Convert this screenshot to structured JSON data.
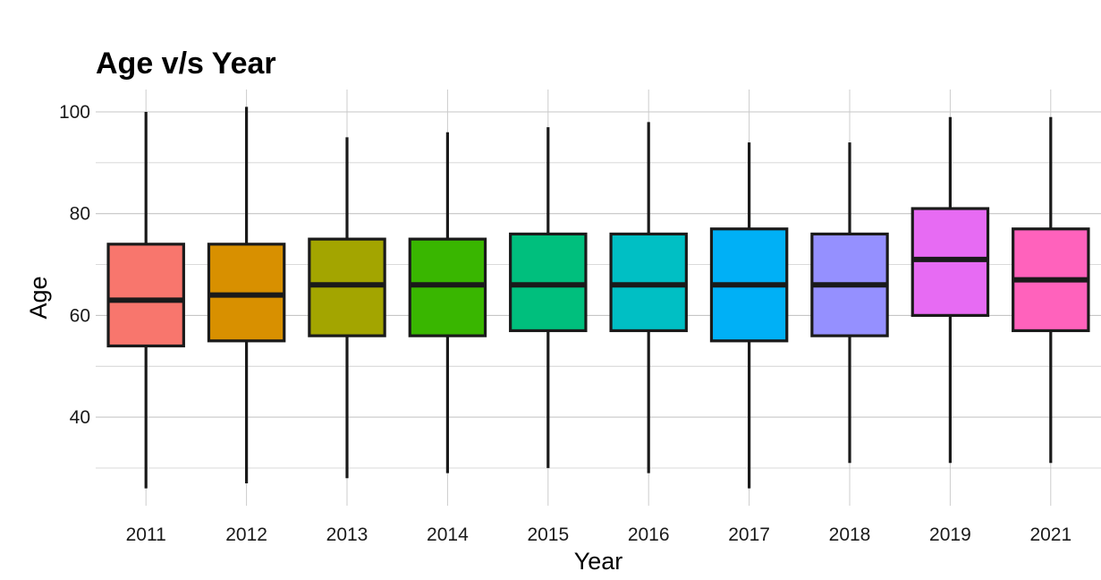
{
  "chart_data": {
    "type": "boxplot",
    "title": "Age v/s Year",
    "xlabel": "Year",
    "ylabel": "Age",
    "categories": [
      "2011",
      "2012",
      "2013",
      "2014",
      "2015",
      "2016",
      "2017",
      "2018",
      "2019",
      "2021"
    ],
    "boxes": [
      {
        "category": "2011",
        "whisker_low": 26,
        "q1": 54,
        "median": 63,
        "q3": 74,
        "whisker_high": 100,
        "color": "#F8766D"
      },
      {
        "category": "2012",
        "whisker_low": 27,
        "q1": 55,
        "median": 64,
        "q3": 74,
        "whisker_high": 101,
        "color": "#D89000"
      },
      {
        "category": "2013",
        "whisker_low": 28,
        "q1": 56,
        "median": 66,
        "q3": 75,
        "whisker_high": 95,
        "color": "#A3A500"
      },
      {
        "category": "2014",
        "whisker_low": 29,
        "q1": 56,
        "median": 66,
        "q3": 75,
        "whisker_high": 96,
        "color": "#39B600"
      },
      {
        "category": "2015",
        "whisker_low": 30,
        "q1": 57,
        "median": 66,
        "q3": 76,
        "whisker_high": 97,
        "color": "#00BF7D"
      },
      {
        "category": "2016",
        "whisker_low": 29,
        "q1": 57,
        "median": 66,
        "q3": 76,
        "whisker_high": 98,
        "color": "#00BFC4"
      },
      {
        "category": "2017",
        "whisker_low": 26,
        "q1": 55,
        "median": 66,
        "q3": 77,
        "whisker_high": 94,
        "color": "#00B0F6"
      },
      {
        "category": "2018",
        "whisker_low": 31,
        "q1": 56,
        "median": 66,
        "q3": 76,
        "whisker_high": 94,
        "color": "#9590FF"
      },
      {
        "category": "2019",
        "whisker_low": 31,
        "q1": 60,
        "median": 71,
        "q3": 81,
        "whisker_high": 99,
        "color": "#E76BF3"
      },
      {
        "category": "2021",
        "whisker_low": 31,
        "q1": 57,
        "median": 67,
        "q3": 77,
        "whisker_high": 99,
        "color": "#FF62BC"
      }
    ],
    "yticks": [
      40,
      60,
      80,
      100
    ],
    "ylim": [
      22.6,
      104.4
    ],
    "grid": true,
    "legend": "none"
  }
}
